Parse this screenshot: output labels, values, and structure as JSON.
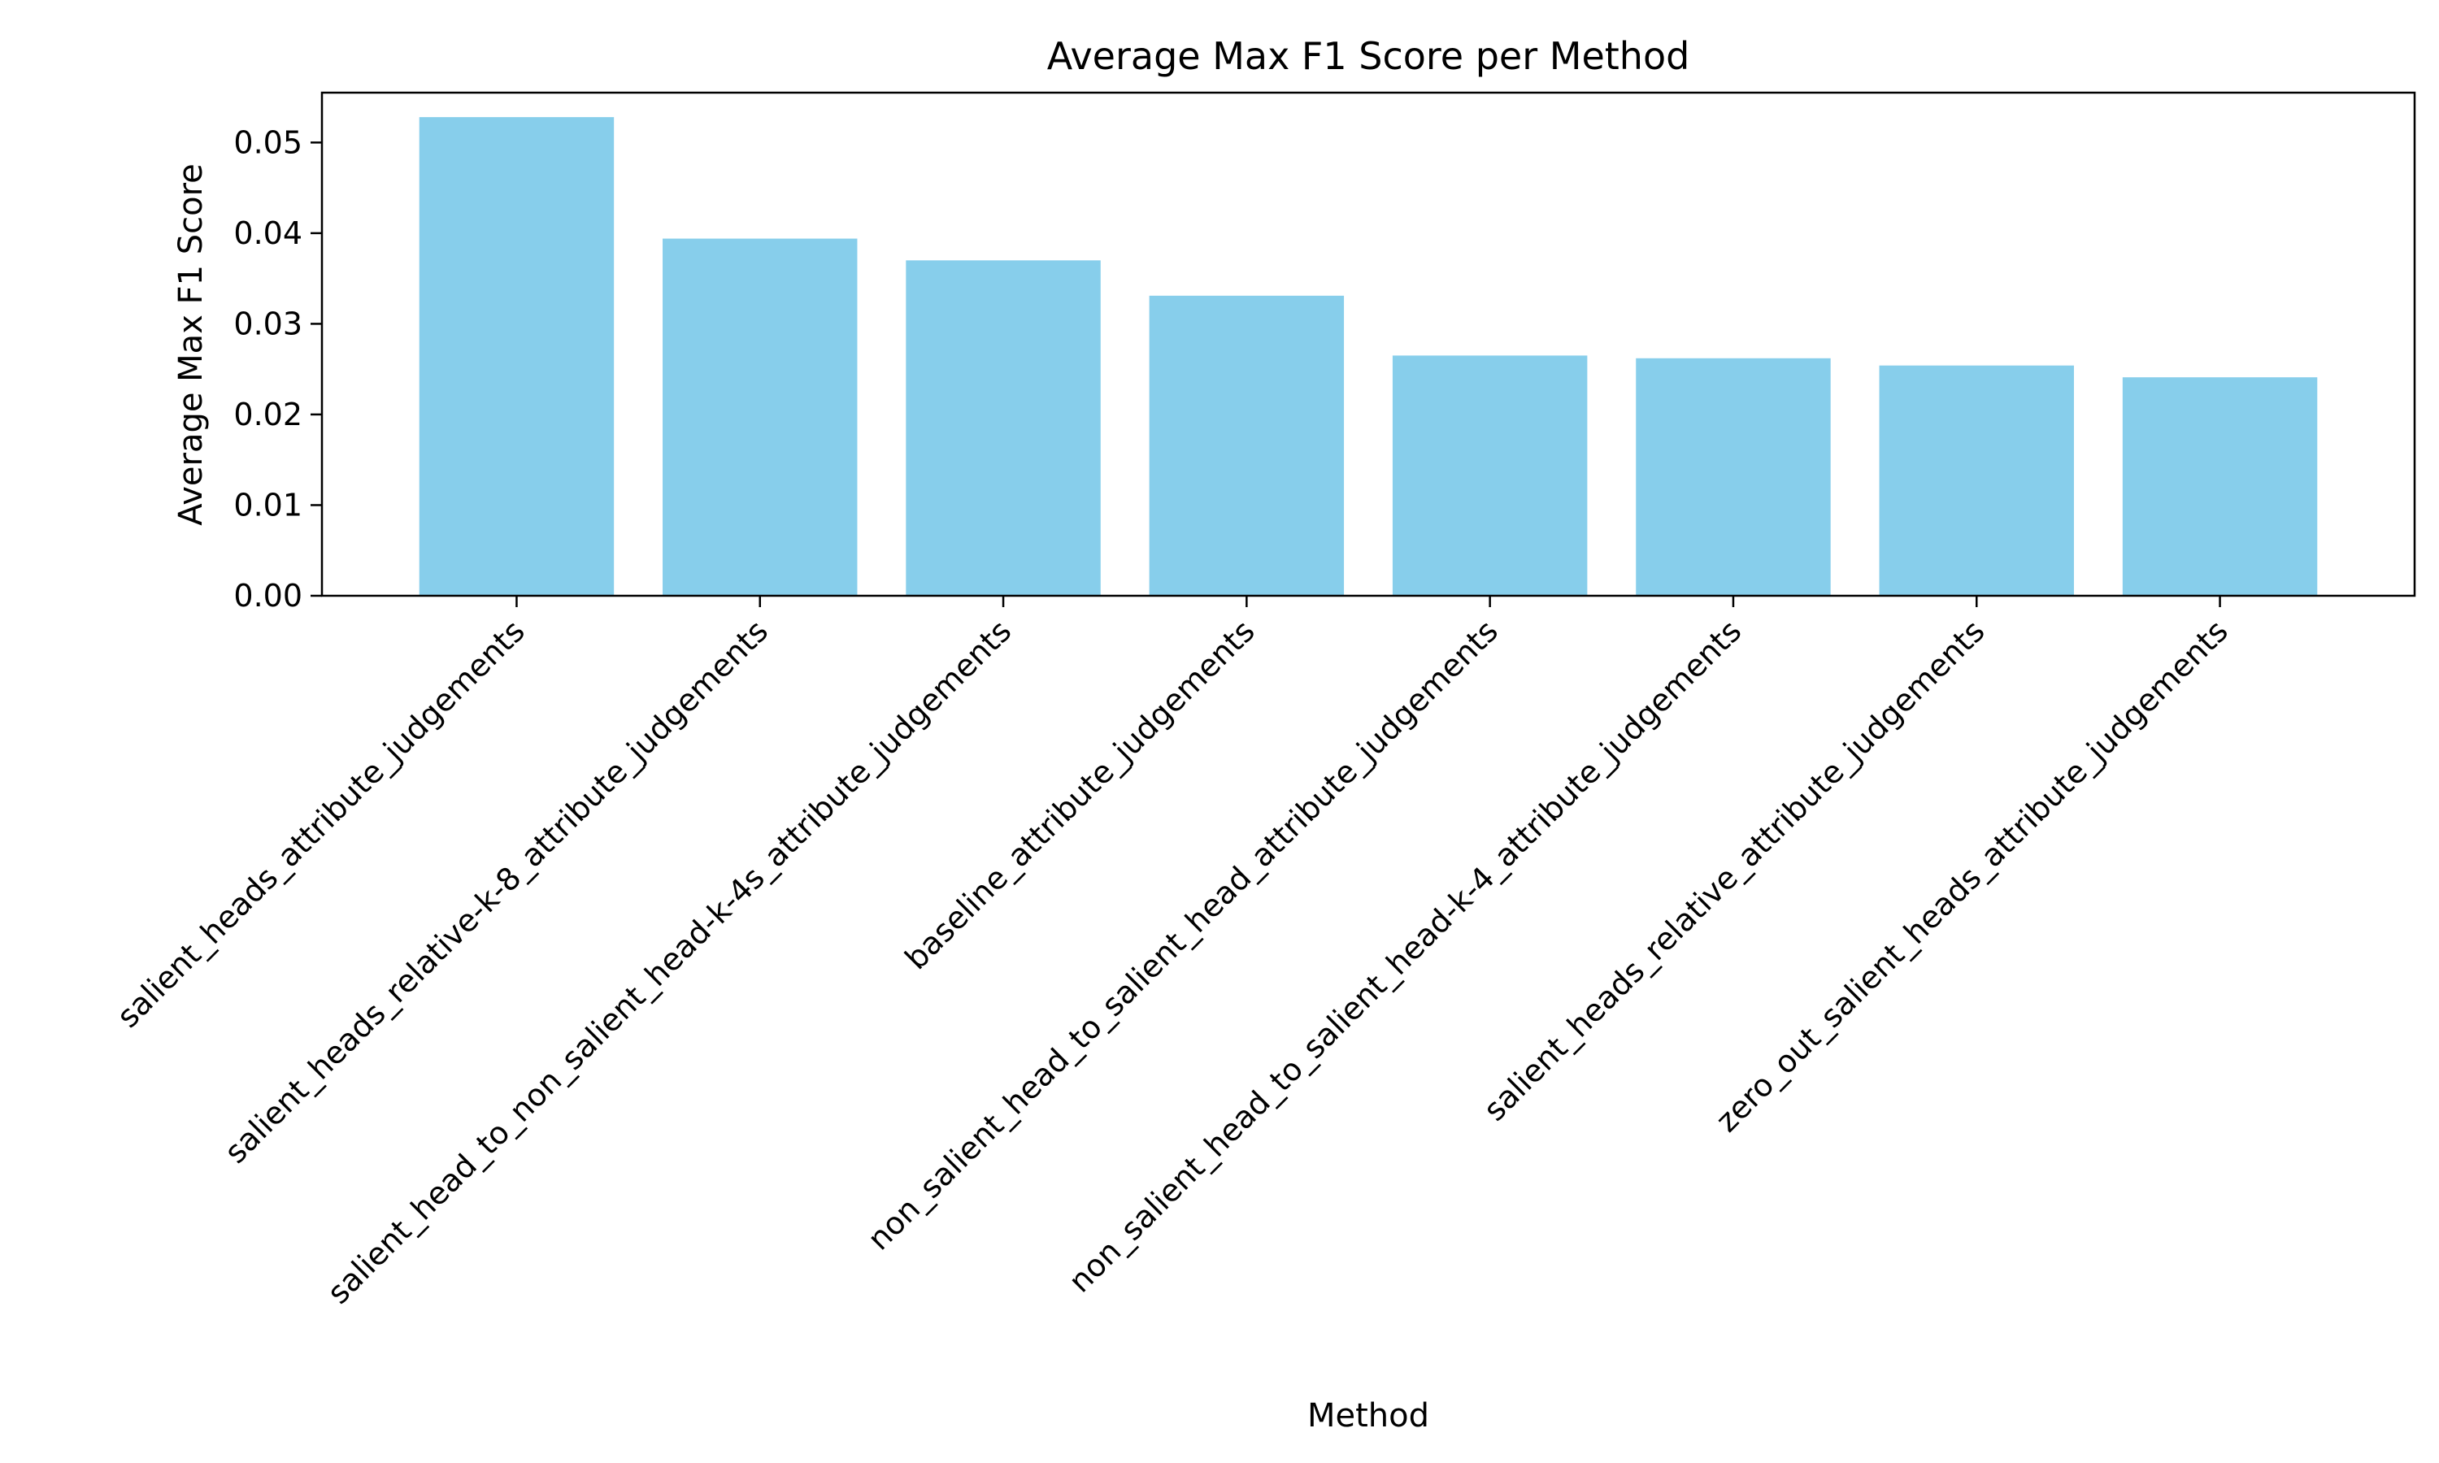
{
  "chart_data": {
    "type": "bar",
    "title": "Average Max F1 Score per Method",
    "xlabel": "Method",
    "ylabel": "Average Max F1 Score",
    "categories": [
      "salient_heads_attribute_judgements",
      "salient_heads_relative-k-8_attribute_judgements",
      "salient_head_to_non_salient_head-k-4s_attribute_judgements",
      "baseline_attribute_judgements",
      "non_salient_head_to_salient_head_attribute_judgements",
      "non_salient_head_to_salient_head-k-4_attribute_judgements",
      "salient_heads_relative_attribute_judgements",
      "zero_out_salient_heads_attribute_judgements"
    ],
    "values": [
      0.0528,
      0.0394,
      0.037,
      0.0331,
      0.0265,
      0.0262,
      0.0254,
      0.0241
    ],
    "ylim": [
      0,
      0.0555
    ],
    "yticks": [
      0.0,
      0.01,
      0.02,
      0.03,
      0.04,
      0.05
    ],
    "ytick_labels": [
      "0.00",
      "0.01",
      "0.02",
      "0.03",
      "0.04",
      "0.05"
    ],
    "bar_color": "#87CEEB",
    "grid": false,
    "legend": "none"
  }
}
